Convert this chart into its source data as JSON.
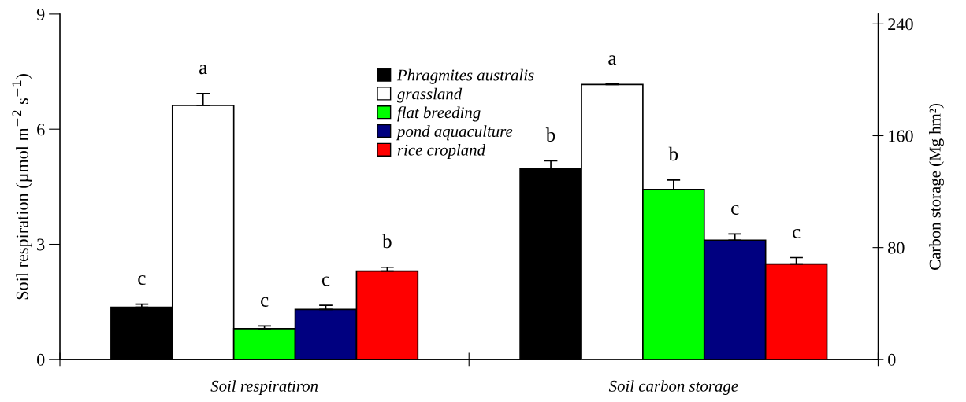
{
  "chart_data": {
    "type": "bar",
    "categories": [
      "Soil respiratiron",
      "Soil carbon storage"
    ],
    "ylabel": "Soil respiration (µmol m$^{−2}$ s$^{−1}$)",
    "y2label": "Carbon storage (Mg hm²)",
    "ylim": [
      0,
      9
    ],
    "yticks": [
      0,
      3,
      6,
      9
    ],
    "y2lim": [
      0,
      247
    ],
    "y2ticks": [
      0,
      80,
      160,
      240
    ],
    "legend": "top",
    "grid": false,
    "series": [
      {
        "name": "Phragmites australis",
        "color": "#000000",
        "axis": "y",
        "values": [
          1.36,
          null
        ],
        "errors": [
          [
            1.36,
            1.44
          ],
          null
        ],
        "value_labels": [
          "c",
          null
        ]
      },
      {
        "name": "grassland",
        "color": "#ffffff",
        "axis": "y",
        "values": [
          6.62,
          null
        ],
        "errors": [
          [
            6.62,
            6.93
          ],
          null
        ],
        "value_labels": [
          "a",
          null
        ]
      },
      {
        "name": "flat breeding",
        "color": "#00ff00",
        "axis": "y",
        "values": [
          0.8,
          null
        ],
        "errors": [
          [
            0.8,
            0.87
          ],
          null
        ],
        "value_labels": [
          "c",
          null
        ]
      },
      {
        "name": "pond aquaculture",
        "color": "#000080",
        "axis": "y",
        "values": [
          1.3,
          null
        ],
        "errors": [
          [
            1.3,
            1.41
          ],
          null
        ],
        "value_labels": [
          "c",
          null
        ]
      },
      {
        "name": "rice cropland",
        "color": "#ff0000",
        "axis": "y",
        "values": [
          2.3,
          null
        ],
        "errors": [
          [
            2.3,
            2.4
          ],
          null
        ],
        "value_labels": [
          "b",
          null
        ]
      },
      {
        "color": "#000000",
        "axis": "y2",
        "values": [
          null,
          136.5
        ],
        "errors": [
          null,
          [
            136.5,
            142
          ]
        ],
        "value_labels": [
          null,
          "b"
        ]
      },
      {
        "color": "#ffffff",
        "axis": "y2",
        "values": [
          null,
          196.6
        ],
        "errors": [
          null,
          [
            196.6,
            197
          ]
        ],
        "value_labels": [
          null,
          "a"
        ]
      },
      {
        "color": "#00ff00",
        "axis": "y2",
        "values": [
          null,
          121.5
        ],
        "errors": [
          null,
          [
            121.5,
            128.3
          ]
        ],
        "value_labels": [
          null,
          "b"
        ]
      },
      {
        "color": "#000080",
        "axis": "y2",
        "values": [
          null,
          85.3
        ],
        "errors": [
          null,
          [
            85.3,
            89.7
          ]
        ],
        "value_labels": [
          null,
          "c"
        ]
      },
      {
        "color": "#ff0000",
        "axis": "y2",
        "values": [
          null,
          68.2
        ],
        "errors": [
          null,
          [
            68.2,
            72.8
          ]
        ],
        "value_labels": [
          null,
          "c"
        ]
      }
    ]
  }
}
